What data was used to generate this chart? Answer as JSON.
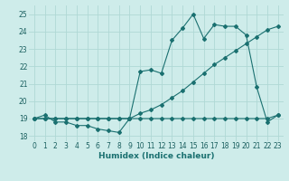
{
  "xlabel": "Humidex (Indice chaleur)",
  "xlim": [
    -0.5,
    23.5
  ],
  "ylim": [
    17.7,
    25.5
  ],
  "yticks": [
    18,
    19,
    20,
    21,
    22,
    23,
    24,
    25
  ],
  "xticks": [
    0,
    1,
    2,
    3,
    4,
    5,
    6,
    7,
    8,
    9,
    10,
    11,
    12,
    13,
    14,
    15,
    16,
    17,
    18,
    19,
    20,
    21,
    22,
    23
  ],
  "background_color": "#ceecea",
  "grid_color": "#b0d8d5",
  "line_color": "#1a7070",
  "line1_y": [
    19.0,
    19.2,
    18.8,
    18.8,
    18.6,
    18.6,
    18.4,
    18.3,
    18.2,
    19.0,
    21.7,
    21.8,
    21.6,
    23.5,
    24.2,
    25.0,
    23.6,
    24.4,
    24.3,
    24.3,
    23.8,
    20.8,
    18.8,
    19.2
  ],
  "line2_y": [
    19.0,
    19.0,
    19.0,
    19.0,
    19.0,
    19.0,
    19.0,
    19.0,
    19.0,
    19.0,
    19.3,
    19.5,
    19.8,
    20.2,
    20.6,
    21.1,
    21.6,
    22.1,
    22.5,
    22.9,
    23.3,
    23.7,
    24.1,
    24.3
  ],
  "line3_y": [
    19.0,
    19.0,
    19.0,
    19.0,
    19.0,
    19.0,
    19.0,
    19.0,
    19.0,
    19.0,
    19.0,
    19.0,
    19.0,
    19.0,
    19.0,
    19.0,
    19.0,
    19.0,
    19.0,
    19.0,
    19.0,
    19.0,
    19.0,
    19.2
  ],
  "markersize": 2.0,
  "linewidth": 0.8
}
